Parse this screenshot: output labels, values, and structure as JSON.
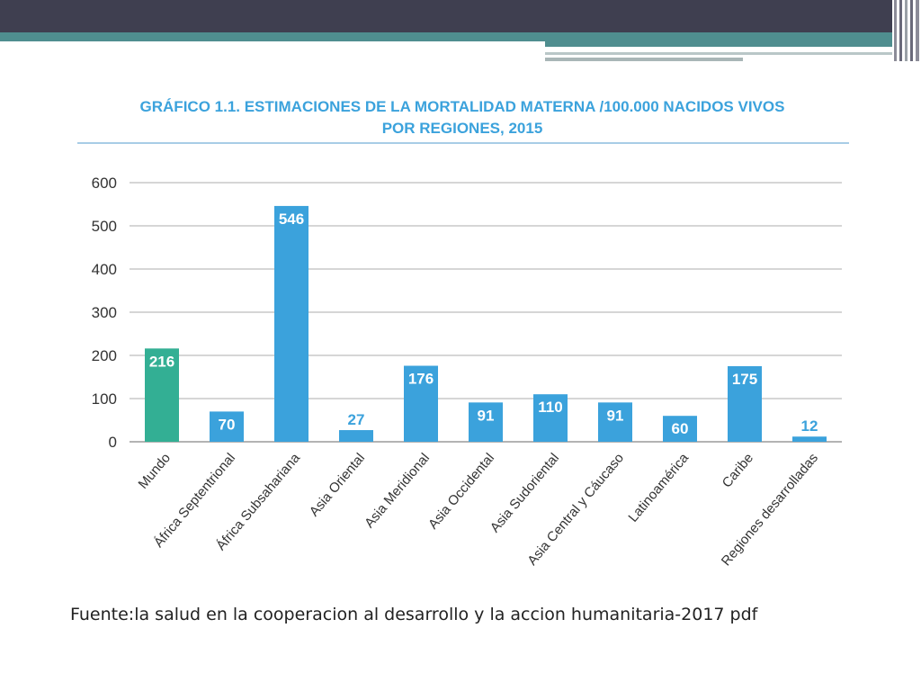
{
  "colors": {
    "bar": "#3ba2dc",
    "bar_highlight": "#33af94",
    "title": "#3ba2dc",
    "grid": "#c8c8c8",
    "header_dark": "#3f3f50",
    "header_teal": "#4f8e8f"
  },
  "chart_data": {
    "type": "bar",
    "title_line1": "GRÁFICO 1.1. ESTIMACIONES DE LA MORTALIDAD MATERNA /100.000 NACIDOS VIVOS",
    "title_line2": "POR REGIONES, 2015",
    "categories": [
      "Mundo",
      "África Septentrional",
      "África Subsahariana",
      "Asia Oriental",
      "Asia Meridional",
      "Asia Occidental",
      "Asia Sudoriental",
      "Asia Central y Cáucaso",
      "Latinoamérica",
      "Caribe",
      "Regiones desarrolladas"
    ],
    "values": [
      216,
      70,
      546,
      27,
      176,
      91,
      110,
      91,
      60,
      175,
      12
    ],
    "highlight_index": 0,
    "ylim": [
      0,
      600
    ],
    "yticks": [
      0,
      100,
      200,
      300,
      400,
      500,
      600
    ],
    "grid": true,
    "xlabel": "",
    "ylabel": ""
  },
  "source_text": "Fuente:la salud en la cooperacion al desarrollo y la accion humanitaria-2017 pdf"
}
